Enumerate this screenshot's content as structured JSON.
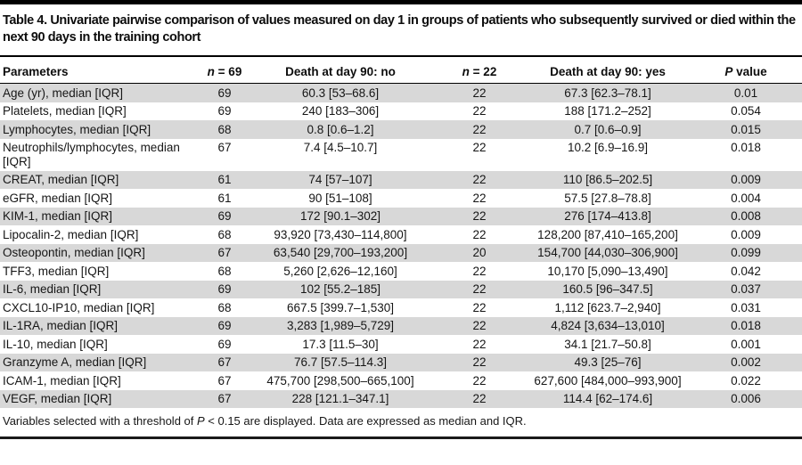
{
  "table": {
    "title": "Table 4. Univariate pairwise comparison of values measured on day 1 in groups of patients who subsequently survived or died within the next 90 days in the training cohort",
    "columns": [
      "Parameters",
      "n = 69",
      "Death at day 90: no",
      "n = 22",
      "Death at day 90: yes",
      "P value"
    ],
    "rows": [
      [
        "Age (yr), median [IQR]",
        "69",
        "60.3 [53–68.6]",
        "22",
        "67.3 [62.3–78.1]",
        "0.01"
      ],
      [
        "Platelets, median [IQR]",
        "69",
        "240 [183–306]",
        "22",
        "188 [171.2–252]",
        "0.054"
      ],
      [
        "Lymphocytes, median [IQR]",
        "68",
        "0.8 [0.6–1.2]",
        "22",
        "0.7 [0.6–0.9]",
        "0.015"
      ],
      [
        "Neutrophils/lymphocytes, median [IQR]",
        "67",
        "7.4 [4.5–10.7]",
        "22",
        "10.2 [6.9–16.9]",
        "0.018"
      ],
      [
        "CREAT, median [IQR]",
        "61",
        "74 [57–107]",
        "22",
        "110 [86.5–202.5]",
        "0.009"
      ],
      [
        "eGFR, median [IQR]",
        "61",
        "90 [51–108]",
        "22",
        "57.5 [27.8–78.8]",
        "0.004"
      ],
      [
        "KIM-1, median [IQR]",
        "69",
        "172 [90.1–302]",
        "22",
        "276 [174–413.8]",
        "0.008"
      ],
      [
        "Lipocalin-2, median [IQR]",
        "68",
        "93,920 [73,430–114,800]",
        "22",
        "128,200 [87,410–165,200]",
        "0.009"
      ],
      [
        "Osteopontin, median [IQR]",
        "67",
        "63,540 [29,700–193,200]",
        "20",
        "154,700 [44,030–306,900]",
        "0.099"
      ],
      [
        "TFF3, median [IQR]",
        "68",
        "5,260 [2,626–12,160]",
        "22",
        "10,170 [5,090–13,490]",
        "0.042"
      ],
      [
        "IL-6, median [IQR]",
        "69",
        "102 [55.2–185]",
        "22",
        "160.5 [96–347.5]",
        "0.037"
      ],
      [
        "CXCL10-IP10, median [IQR]",
        "68",
        "667.5 [399.7–1,530]",
        "22",
        "1,112 [623.7–2,940]",
        "0.031"
      ],
      [
        "IL-1RA, median [IQR]",
        "69",
        "3,283 [1,989–5,729]",
        "22",
        "4,824 [3,634–13,010]",
        "0.018"
      ],
      [
        "IL-10, median [IQR]",
        "69",
        "17.3 [11.5–30]",
        "22",
        "34.1 [21.7–50.8]",
        "0.001"
      ],
      [
        "Granzyme A, median [IQR]",
        "67",
        "76.7 [57.5–114.3]",
        "22",
        "49.3 [25–76]",
        "0.002"
      ],
      [
        "ICAM-1, median [IQR]",
        "67",
        "475,700 [298,500–665,100]",
        "22",
        "627,600 [484,000–993,900]",
        "0.022"
      ],
      [
        "VEGF, median [IQR]",
        "67",
        "228 [121.1–347.1]",
        "22",
        "114.4 [62–174.6]",
        "0.006"
      ]
    ],
    "footnote": "Variables selected with a threshold of P < 0.15 are displayed. Data are expressed as median and IQR."
  },
  "colors": {
    "row_shade": "#d8d8d8",
    "rule": "#000000",
    "text": "#161616"
  }
}
